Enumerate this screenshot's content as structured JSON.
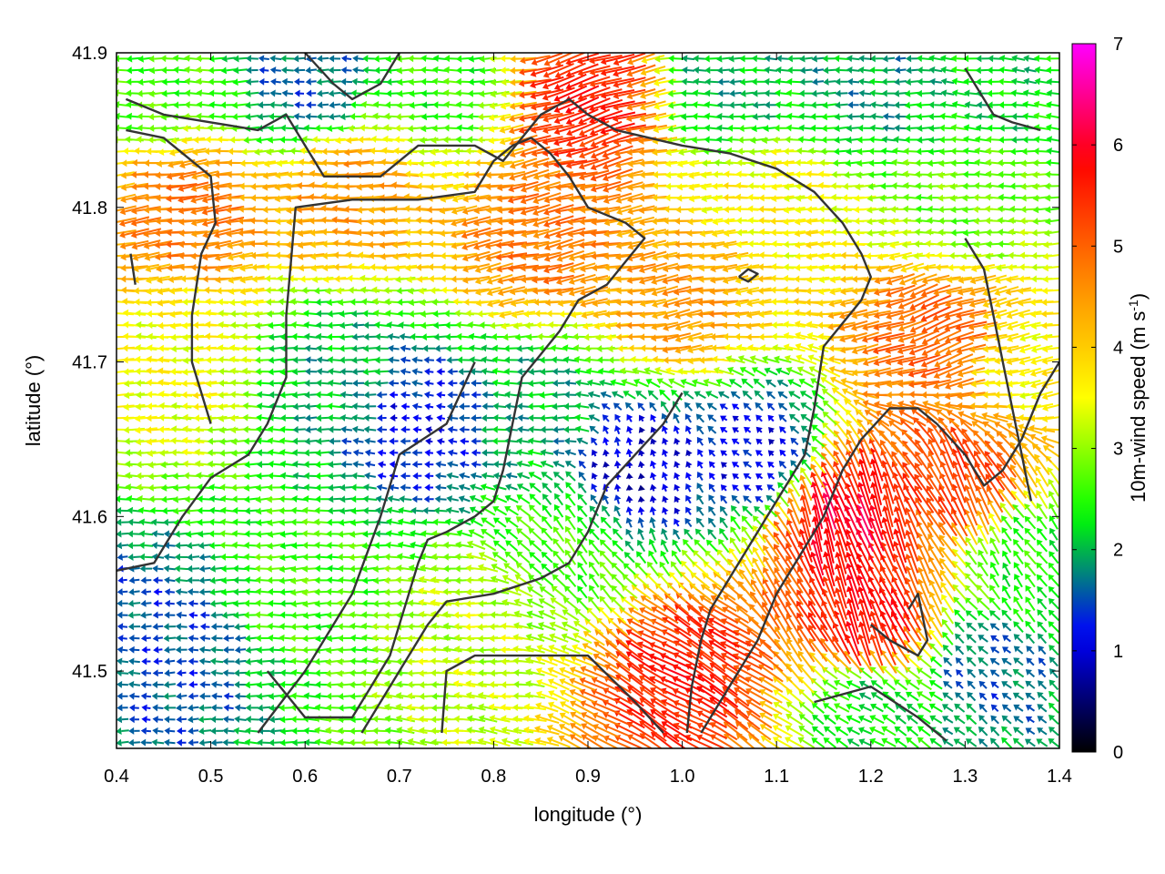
{
  "chart_data": {
    "type": "vector-field",
    "title": "",
    "xlabel": "longitude (°)",
    "ylabel": "latitude (°)",
    "xlim": [
      0.4,
      1.4
    ],
    "ylim": [
      41.45,
      41.9
    ],
    "xticks": [
      "0.4",
      "0.5",
      "0.6",
      "0.7",
      "0.8",
      "0.9",
      "1.0",
      "1.1",
      "1.2",
      "1.3",
      "1.4"
    ],
    "yticks": [
      "41.5",
      "41.6",
      "41.7",
      "41.8",
      "41.9"
    ],
    "grid": false,
    "legend": "none",
    "colorbar": {
      "label_prefix": "10m-wind speed (m s",
      "label_exponent": "-1",
      "label_suffix": ")",
      "range": [
        0,
        7
      ],
      "ticks": [
        "0",
        "1",
        "2",
        "3",
        "4",
        "5",
        "6",
        "7"
      ],
      "palette": [
        "#000000",
        "#0000ff",
        "#00ff00",
        "#ffff00",
        "#ff8800",
        "#ff0000",
        "#ff00ff"
      ]
    },
    "grid_spacing_deg": {
      "dx": 0.0125,
      "dy": 0.0075
    },
    "wind_regions": [
      {
        "lon": 0.45,
        "lat": 41.88,
        "speed": 2.6,
        "dir_deg": 180
      },
      {
        "lon": 0.6,
        "lat": 41.88,
        "speed": 1.6,
        "dir_deg": 180
      },
      {
        "lon": 0.75,
        "lat": 41.88,
        "speed": 2.5,
        "dir_deg": 180
      },
      {
        "lon": 0.9,
        "lat": 41.87,
        "speed": 5.6,
        "dir_deg": 198
      },
      {
        "lon": 1.05,
        "lat": 41.88,
        "speed": 2.0,
        "dir_deg": 180
      },
      {
        "lon": 1.2,
        "lat": 41.88,
        "speed": 1.9,
        "dir_deg": 180
      },
      {
        "lon": 1.33,
        "lat": 41.88,
        "speed": 2.2,
        "dir_deg": 175
      },
      {
        "lon": 0.48,
        "lat": 41.8,
        "speed": 4.8,
        "dir_deg": 188
      },
      {
        "lon": 0.65,
        "lat": 41.81,
        "speed": 4.5,
        "dir_deg": 180
      },
      {
        "lon": 0.85,
        "lat": 41.78,
        "speed": 4.8,
        "dir_deg": 192
      },
      {
        "lon": 1.0,
        "lat": 41.74,
        "speed": 4.5,
        "dir_deg": 190
      },
      {
        "lon": 1.1,
        "lat": 41.8,
        "speed": 3.6,
        "dir_deg": 182
      },
      {
        "lon": 1.3,
        "lat": 41.8,
        "speed": 2.8,
        "dir_deg": 180
      },
      {
        "lon": 1.27,
        "lat": 41.72,
        "speed": 5.0,
        "dir_deg": 200
      },
      {
        "lon": 0.47,
        "lat": 41.7,
        "speed": 3.5,
        "dir_deg": 180
      },
      {
        "lon": 0.63,
        "lat": 41.69,
        "speed": 2.0,
        "dir_deg": 180
      },
      {
        "lon": 0.72,
        "lat": 41.66,
        "speed": 1.2,
        "dir_deg": 175
      },
      {
        "lon": 0.85,
        "lat": 41.67,
        "speed": 2.0,
        "dir_deg": 180
      },
      {
        "lon": 0.95,
        "lat": 41.63,
        "speed": 0.9,
        "dir_deg": 105
      },
      {
        "lon": 1.08,
        "lat": 41.64,
        "speed": 1.1,
        "dir_deg": 140
      },
      {
        "lon": 1.17,
        "lat": 41.6,
        "speed": 6.0,
        "dir_deg": 108
      },
      {
        "lon": 1.3,
        "lat": 41.62,
        "speed": 5.3,
        "dir_deg": 118
      },
      {
        "lon": 1.2,
        "lat": 41.53,
        "speed": 5.8,
        "dir_deg": 112
      },
      {
        "lon": 1.0,
        "lat": 41.5,
        "speed": 5.6,
        "dir_deg": 150
      },
      {
        "lon": 0.45,
        "lat": 41.52,
        "speed": 1.5,
        "dir_deg": 180
      },
      {
        "lon": 0.6,
        "lat": 41.56,
        "speed": 2.6,
        "dir_deg": 182
      },
      {
        "lon": 0.78,
        "lat": 41.53,
        "speed": 3.2,
        "dir_deg": 178
      },
      {
        "lon": 0.88,
        "lat": 41.58,
        "speed": 2.6,
        "dir_deg": 130
      },
      {
        "lon": 1.2,
        "lat": 41.48,
        "speed": 2.2,
        "dir_deg": 150
      },
      {
        "lon": 1.32,
        "lat": 41.5,
        "speed": 1.6,
        "dir_deg": 140
      },
      {
        "lon": 1.36,
        "lat": 41.58,
        "speed": 2.4,
        "dir_deg": 125
      },
      {
        "lon": 1.37,
        "lat": 41.7,
        "speed": 3.6,
        "dir_deg": 190
      }
    ],
    "contours": [
      [
        [
          0.41,
          41.87
        ],
        [
          0.45,
          41.86
        ],
        [
          0.5,
          41.855
        ],
        [
          0.55,
          41.85
        ],
        [
          0.58,
          41.86
        ],
        [
          0.6,
          41.84
        ],
        [
          0.62,
          41.82
        ],
        [
          0.68,
          41.82
        ],
        [
          0.72,
          41.84
        ],
        [
          0.78,
          41.84
        ],
        [
          0.81,
          41.83
        ],
        [
          0.85,
          41.86
        ],
        [
          0.88,
          41.87
        ],
        [
          0.9,
          41.86
        ],
        [
          0.93,
          41.85
        ],
        [
          1.0,
          41.84
        ],
        [
          1.05,
          41.835
        ],
        [
          1.1,
          41.825
        ],
        [
          1.14,
          41.81
        ],
        [
          1.17,
          41.79
        ],
        [
          1.19,
          41.77
        ],
        [
          1.2,
          41.755
        ],
        [
          1.19,
          41.74
        ],
        [
          1.17,
          41.725
        ],
        [
          1.15,
          41.71
        ],
        [
          1.145,
          41.69
        ],
        [
          1.14,
          41.67
        ],
        [
          1.13,
          41.64
        ],
        [
          1.11,
          41.62
        ],
        [
          1.09,
          41.6
        ],
        [
          1.07,
          41.58
        ],
        [
          1.05,
          41.56
        ],
        [
          1.03,
          41.54
        ],
        [
          1.02,
          41.52
        ],
        [
          1.01,
          41.49
        ],
        [
          1.005,
          41.46
        ]
      ],
      [
        [
          0.41,
          41.85
        ],
        [
          0.45,
          41.845
        ],
        [
          0.48,
          41.83
        ],
        [
          0.5,
          41.82
        ],
        [
          0.505,
          41.79
        ],
        [
          0.49,
          41.77
        ],
        [
          0.48,
          41.73
        ],
        [
          0.48,
          41.7
        ],
        [
          0.5,
          41.66
        ]
      ],
      [
        [
          0.415,
          41.77
        ],
        [
          0.42,
          41.75
        ]
      ],
      [
        [
          0.4,
          41.565
        ],
        [
          0.44,
          41.57
        ],
        [
          0.47,
          41.6
        ],
        [
          0.5,
          41.625
        ],
        [
          0.54,
          41.64
        ],
        [
          0.56,
          41.66
        ],
        [
          0.58,
          41.69
        ],
        [
          0.58,
          41.73
        ],
        [
          0.585,
          41.765
        ],
        [
          0.59,
          41.8
        ],
        [
          0.65,
          41.805
        ],
        [
          0.72,
          41.805
        ],
        [
          0.78,
          41.81
        ],
        [
          0.8,
          41.83
        ],
        [
          0.82,
          41.84
        ],
        [
          0.84,
          41.845
        ],
        [
          0.86,
          41.835
        ],
        [
          0.88,
          41.82
        ],
        [
          0.9,
          41.8
        ],
        [
          0.94,
          41.79
        ],
        [
          0.96,
          41.78
        ],
        [
          0.94,
          41.765
        ],
        [
          0.92,
          41.75
        ],
        [
          0.89,
          41.74
        ],
        [
          0.87,
          41.72
        ],
        [
          0.85,
          41.705
        ],
        [
          0.83,
          41.69
        ],
        [
          0.82,
          41.66
        ],
        [
          0.81,
          41.63
        ],
        [
          0.8,
          41.61
        ],
        [
          0.78,
          41.6
        ],
        [
          0.75,
          41.59
        ],
        [
          0.73,
          41.585
        ],
        [
          0.72,
          41.57
        ],
        [
          0.71,
          41.55
        ],
        [
          0.7,
          41.53
        ],
        [
          0.69,
          41.51
        ],
        [
          0.67,
          41.49
        ],
        [
          0.65,
          41.47
        ],
        [
          0.6,
          41.47
        ],
        [
          0.56,
          41.5
        ]
      ],
      [
        [
          0.55,
          41.46
        ],
        [
          0.6,
          41.5
        ],
        [
          0.65,
          41.55
        ],
        [
          0.68,
          41.6
        ],
        [
          0.7,
          41.64
        ],
        [
          0.75,
          41.66
        ],
        [
          0.78,
          41.7
        ]
      ],
      [
        [
          0.66,
          41.46
        ],
        [
          0.7,
          41.5
        ],
        [
          0.73,
          41.53
        ],
        [
          0.75,
          41.545
        ],
        [
          0.8,
          41.55
        ],
        [
          0.85,
          41.56
        ],
        [
          0.88,
          41.57
        ],
        [
          0.9,
          41.59
        ],
        [
          0.92,
          41.62
        ],
        [
          0.95,
          41.64
        ],
        [
          0.98,
          41.66
        ],
        [
          1.0,
          41.68
        ]
      ],
      [
        [
          0.745,
          41.46
        ],
        [
          0.75,
          41.5
        ],
        [
          0.78,
          41.51
        ],
        [
          0.84,
          41.51
        ],
        [
          0.9,
          41.51
        ],
        [
          0.95,
          41.48
        ],
        [
          0.98,
          41.46
        ]
      ],
      [
        [
          1.06,
          41.755
        ],
        [
          1.07,
          41.76
        ],
        [
          1.08,
          41.757
        ],
        [
          1.07,
          41.752
        ],
        [
          1.06,
          41.755
        ]
      ],
      [
        [
          1.02,
          41.46
        ],
        [
          1.05,
          41.49
        ],
        [
          1.08,
          41.52
        ],
        [
          1.1,
          41.55
        ],
        [
          1.12,
          41.57
        ],
        [
          1.15,
          41.6
        ],
        [
          1.17,
          41.63
        ],
        [
          1.19,
          41.65
        ],
        [
          1.22,
          41.67
        ],
        [
          1.25,
          41.67
        ],
        [
          1.27,
          41.66
        ],
        [
          1.3,
          41.64
        ],
        [
          1.32,
          41.62
        ],
        [
          1.34,
          41.63
        ],
        [
          1.36,
          41.65
        ],
        [
          1.38,
          41.68
        ],
        [
          1.4,
          41.7
        ]
      ],
      [
        [
          1.2,
          41.53
        ],
        [
          1.22,
          41.52
        ],
        [
          1.25,
          41.51
        ],
        [
          1.26,
          41.52
        ],
        [
          1.25,
          41.55
        ],
        [
          1.24,
          41.54
        ]
      ],
      [
        [
          1.14,
          41.48
        ],
        [
          1.2,
          41.49
        ],
        [
          1.25,
          41.47
        ],
        [
          1.28,
          41.455
        ]
      ],
      [
        [
          1.3,
          41.89
        ],
        [
          1.32,
          41.87
        ],
        [
          1.33,
          41.86
        ],
        [
          1.35,
          41.855
        ],
        [
          1.38,
          41.85
        ]
      ],
      [
        [
          0.6,
          41.9
        ],
        [
          0.63,
          41.88
        ],
        [
          0.65,
          41.87
        ],
        [
          0.68,
          41.88
        ],
        [
          0.7,
          41.9
        ]
      ],
      [
        [
          1.3,
          41.78
        ],
        [
          1.32,
          41.76
        ],
        [
          1.33,
          41.73
        ],
        [
          1.34,
          41.7
        ],
        [
          1.35,
          41.67
        ],
        [
          1.36,
          41.64
        ],
        [
          1.37,
          41.61
        ]
      ]
    ]
  }
}
